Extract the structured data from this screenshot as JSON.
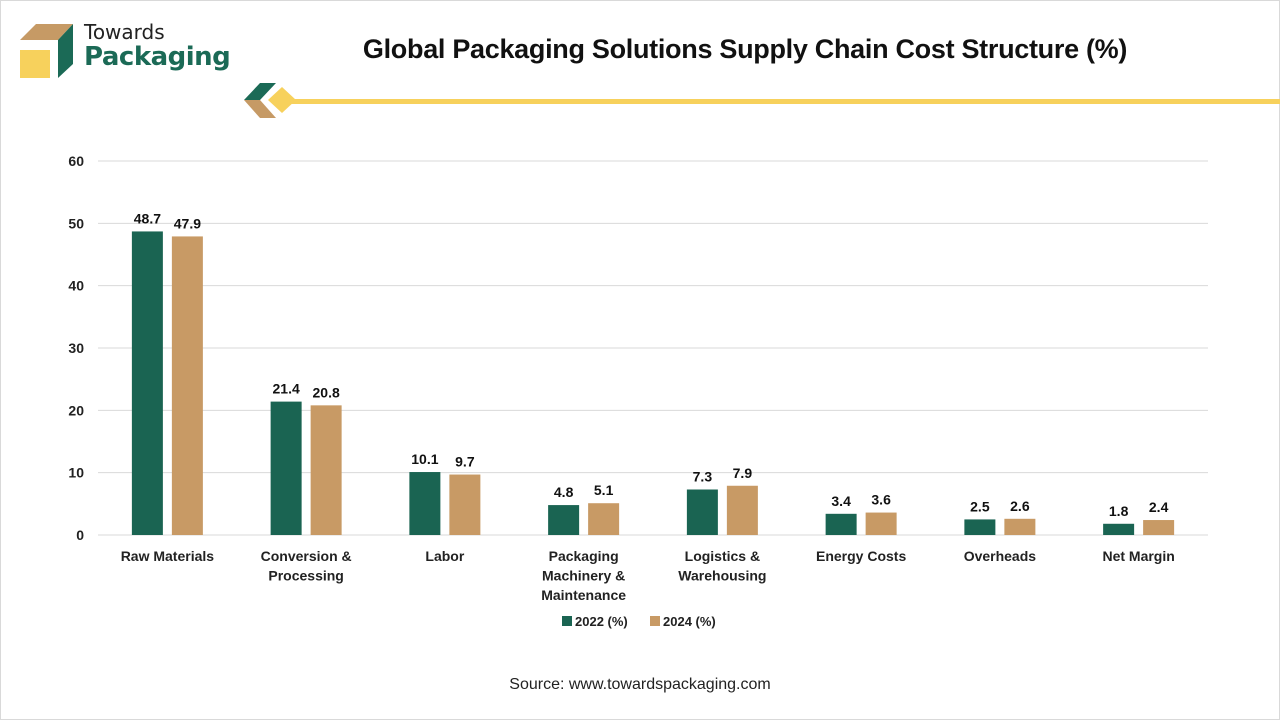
{
  "brand": {
    "line1": "Towards",
    "line2": "Packaging",
    "colors": {
      "green": "#1b6a56",
      "tan": "#c69a65",
      "yellow": "#f7d15c"
    }
  },
  "source": "Source: www.towardspackaging.com",
  "chart_data": {
    "type": "bar",
    "title": "Global Packaging Solutions Supply Chain Cost Structure (%)",
    "xlabel": "",
    "ylabel": "",
    "ylim": [
      0,
      60
    ],
    "yticks": [
      0,
      10,
      20,
      30,
      40,
      50,
      60
    ],
    "grid": true,
    "legend_position": "bottom-center",
    "categories": [
      [
        "Raw Materials"
      ],
      [
        "Conversion &",
        "Processing"
      ],
      [
        "Labor"
      ],
      [
        "Packaging",
        "Machinery &",
        "Maintenance"
      ],
      [
        "Logistics &",
        "Warehousing"
      ],
      [
        "Energy Costs"
      ],
      [
        "Overheads"
      ],
      [
        "Net Margin"
      ]
    ],
    "series": [
      {
        "name": "2022 (%)",
        "color": "#1a6452",
        "values": [
          48.7,
          21.4,
          10.1,
          4.8,
          7.3,
          3.4,
          2.5,
          1.8
        ]
      },
      {
        "name": "2024 (%)",
        "color": "#c89a65",
        "values": [
          47.9,
          20.8,
          9.7,
          5.1,
          7.9,
          3.6,
          2.6,
          2.4
        ]
      }
    ]
  }
}
